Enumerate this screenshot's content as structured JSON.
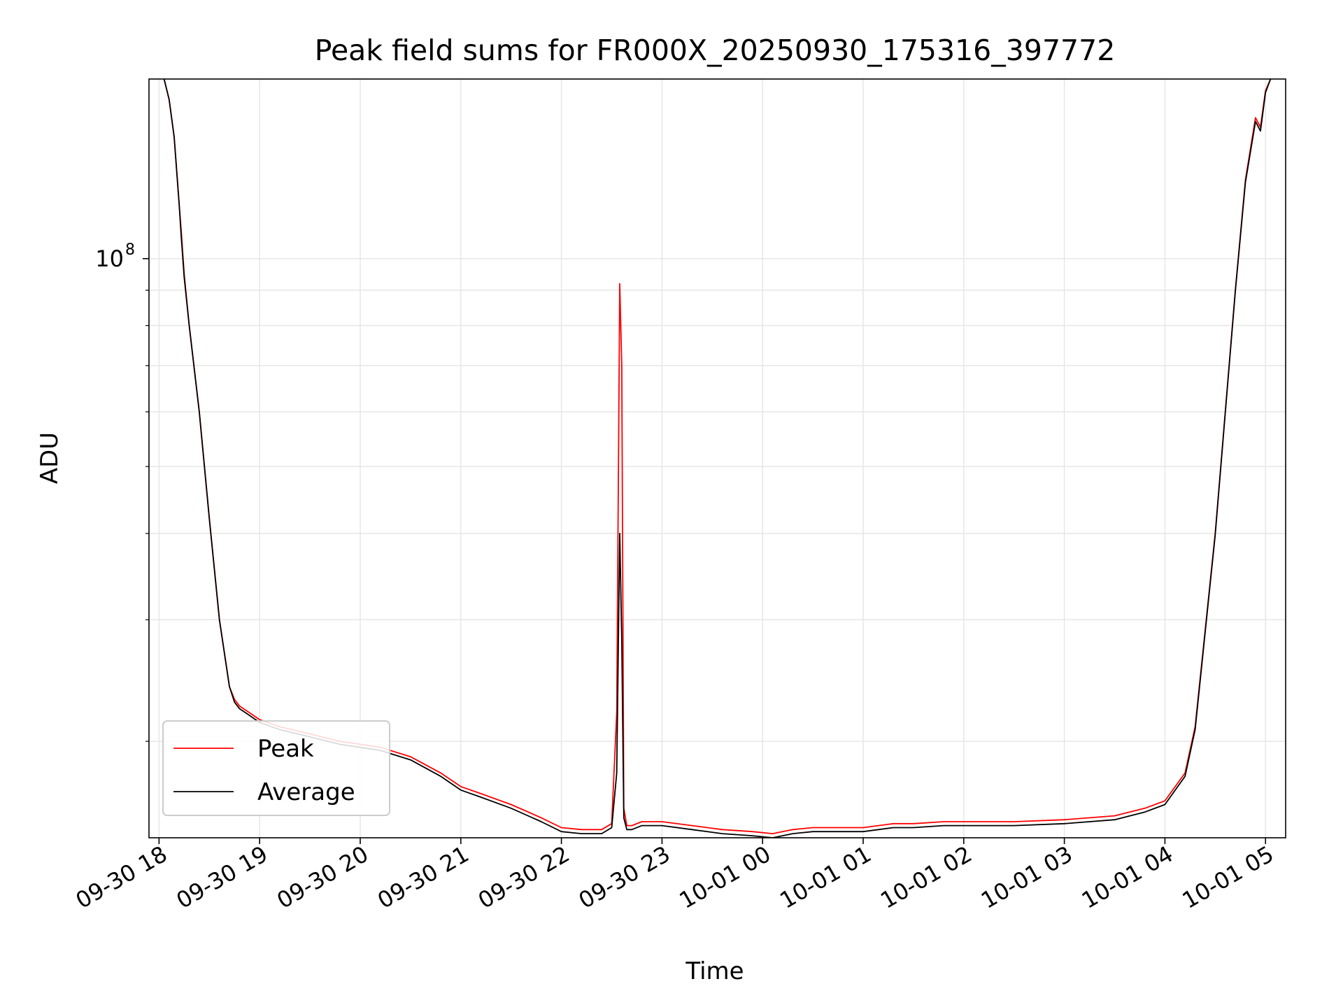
{
  "chart_data": {
    "type": "line",
    "title": "Peak field sums for FR000X_20250930_175316_397772",
    "xlabel": "Time",
    "ylabel": "ADU",
    "yscale": "log",
    "ylim": [
      14500000,
      182000000
    ],
    "xlim": [
      -0.1,
      11.2
    ],
    "grid": true,
    "legend_position": "lower-left",
    "y_major_ticks": [
      {
        "value": 100000000,
        "label_base": "10",
        "label_exp": "8"
      }
    ],
    "y_minor_ticks": [
      20000000,
      30000000,
      40000000,
      50000000,
      60000000,
      70000000,
      80000000,
      90000000,
      200000000
    ],
    "x_ticks": [
      {
        "value": 0,
        "label": "09-30 18"
      },
      {
        "value": 1,
        "label": "09-30 19"
      },
      {
        "value": 2,
        "label": "09-30 20"
      },
      {
        "value": 3,
        "label": "09-30 21"
      },
      {
        "value": 4,
        "label": "09-30 22"
      },
      {
        "value": 5,
        "label": "09-30 23"
      },
      {
        "value": 6,
        "label": "10-01 00"
      },
      {
        "value": 7,
        "label": "10-01 01"
      },
      {
        "value": 8,
        "label": "10-01 02"
      },
      {
        "value": 9,
        "label": "10-01 03"
      },
      {
        "value": 10,
        "label": "10-01 04"
      },
      {
        "value": 11,
        "label": "10-01 05"
      }
    ],
    "x_unit": "hours since 09-30 18:00",
    "series": [
      {
        "name": "Peak",
        "color": "#ff0000",
        "x": [
          0.05,
          0.1,
          0.15,
          0.2,
          0.22,
          0.25,
          0.3,
          0.4,
          0.5,
          0.6,
          0.7,
          0.75,
          0.8,
          0.9,
          1.0,
          1.2,
          1.5,
          1.8,
          2.0,
          2.2,
          2.5,
          2.8,
          3.0,
          3.2,
          3.5,
          3.8,
          4.0,
          4.2,
          4.4,
          4.5,
          4.55,
          4.58,
          4.6,
          4.62,
          4.65,
          4.7,
          4.8,
          5.0,
          5.3,
          5.6,
          5.9,
          6.1,
          6.3,
          6.5,
          6.8,
          7.0,
          7.3,
          7.5,
          7.8,
          8.0,
          8.5,
          9.0,
          9.5,
          9.8,
          10.0,
          10.2,
          10.3,
          10.4,
          10.5,
          10.6,
          10.7,
          10.8,
          10.9,
          10.95,
          11.0,
          11.05
        ],
        "values": [
          182000000,
          170000000,
          150000000,
          120000000,
          110000000,
          95000000,
          80000000,
          60000000,
          42000000,
          30000000,
          24000000,
          23000000,
          22500000,
          22000000,
          21500000,
          21000000,
          20500000,
          20000000,
          19800000,
          19600000,
          19000000,
          18000000,
          17200000,
          16800000,
          16200000,
          15500000,
          15000000,
          14900000,
          14900000,
          15200000,
          22000000,
          92000000,
          70000000,
          16000000,
          15100000,
          15100000,
          15300000,
          15300000,
          15100000,
          14900000,
          14800000,
          14700000,
          14900000,
          15000000,
          15000000,
          15000000,
          15200000,
          15200000,
          15300000,
          15300000,
          15300000,
          15400000,
          15600000,
          16000000,
          16400000,
          18000000,
          21000000,
          29000000,
          40000000,
          60000000,
          90000000,
          130000000,
          160000000,
          155000000,
          175000000,
          182000000
        ]
      },
      {
        "name": "Average",
        "color": "#000000",
        "x": [
          0.05,
          0.1,
          0.15,
          0.2,
          0.22,
          0.25,
          0.3,
          0.4,
          0.5,
          0.6,
          0.7,
          0.75,
          0.8,
          0.9,
          1.0,
          1.2,
          1.5,
          1.8,
          2.0,
          2.2,
          2.5,
          2.8,
          3.0,
          3.2,
          3.5,
          3.8,
          4.0,
          4.2,
          4.4,
          4.5,
          4.55,
          4.58,
          4.6,
          4.62,
          4.65,
          4.7,
          4.8,
          5.0,
          5.3,
          5.6,
          5.9,
          6.1,
          6.3,
          6.5,
          6.8,
          7.0,
          7.3,
          7.5,
          7.8,
          8.0,
          8.5,
          9.0,
          9.5,
          9.8,
          10.0,
          10.2,
          10.3,
          10.4,
          10.5,
          10.6,
          10.7,
          10.8,
          10.9,
          10.95,
          11.0,
          11.05
        ],
        "values": [
          182000000,
          170000000,
          150000000,
          120000000,
          108000000,
          94000000,
          80000000,
          60000000,
          42000000,
          30000000,
          24000000,
          22800000,
          22300000,
          21800000,
          21300000,
          20800000,
          20300000,
          19800000,
          19600000,
          19400000,
          18800000,
          17800000,
          17000000,
          16600000,
          16000000,
          15300000,
          14800000,
          14700000,
          14700000,
          15000000,
          18000000,
          40000000,
          28000000,
          15500000,
          14900000,
          14900000,
          15100000,
          15100000,
          14900000,
          14700000,
          14600000,
          14500000,
          14700000,
          14800000,
          14800000,
          14800000,
          15000000,
          15000000,
          15100000,
          15100000,
          15100000,
          15200000,
          15400000,
          15800000,
          16200000,
          17800000,
          20800000,
          28800000,
          39800000,
          59800000,
          89800000,
          129000000,
          158000000,
          153000000,
          174000000,
          182000000
        ]
      }
    ]
  }
}
